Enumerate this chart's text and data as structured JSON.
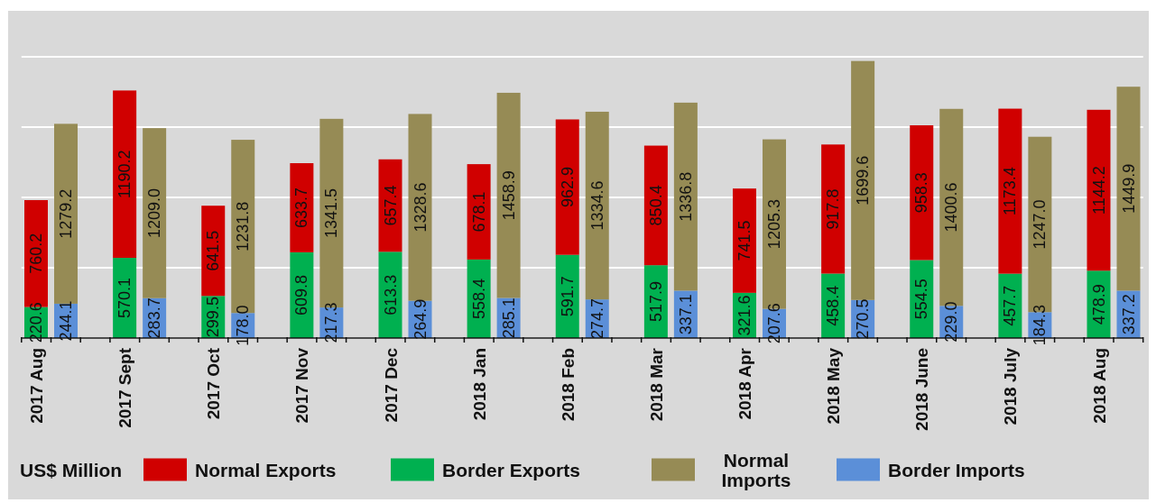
{
  "chart_data": {
    "type": "bar",
    "stacked": true,
    "categories": [
      "2017 Aug",
      null,
      "2017 Sept",
      null,
      "2017 Oct",
      null,
      "2017 Nov",
      null,
      "2017 Dec",
      null,
      "2018 Jan",
      null,
      "2018 Feb",
      null,
      "2018 Mar",
      null,
      "2018 Apr",
      null,
      "2018 May",
      null,
      "2018 June",
      null,
      "2018 July",
      null,
      "2018 Aug",
      null
    ],
    "series": [
      {
        "name": "Border Exports",
        "color": "#00b050",
        "values": [
          220.6,
          null,
          570.1,
          null,
          299.5,
          null,
          609.8,
          null,
          613.3,
          null,
          558.4,
          null,
          591.7,
          null,
          517.9,
          null,
          321.6,
          null,
          458.4,
          null,
          554.5,
          null,
          457.7,
          null,
          478.9,
          null
        ],
        "value_labels": [
          "220.6",
          null,
          "570.1",
          null,
          "299.5",
          null,
          "609.8",
          null,
          "613.3",
          null,
          "558.4",
          null,
          "591.7",
          null,
          "517.9",
          null,
          "321.6",
          null,
          "458.4",
          null,
          "554.5",
          null,
          "457.7",
          null,
          "478.9",
          null
        ]
      },
      {
        "name": "Normal Exports",
        "color": "#d00000",
        "values": [
          760.2,
          null,
          1190.2,
          null,
          641.5,
          null,
          633.7,
          null,
          657.4,
          null,
          678.1,
          null,
          962.9,
          null,
          850.4,
          null,
          741.5,
          null,
          917.8,
          null,
          958.3,
          null,
          1173.4,
          null,
          1144.2,
          null
        ],
        "value_labels": [
          "760.2",
          null,
          "1190.2",
          null,
          "641.5",
          null,
          "633.7",
          null,
          "657.4",
          null,
          "678.1",
          null,
          "962.9",
          null,
          "850.4",
          null,
          "741.5",
          null,
          "917.8",
          null,
          "958.3",
          null,
          "1173.4",
          null,
          "1144.2",
          null
        ]
      },
      {
        "name": "Border Imports",
        "color": "#5b8fd8",
        "values": [
          null,
          244.1,
          null,
          283.7,
          null,
          178.0,
          null,
          217.3,
          null,
          264.9,
          null,
          285.1,
          null,
          274.7,
          null,
          337.1,
          null,
          207.6,
          null,
          270.5,
          null,
          229.0,
          null,
          184.3,
          null,
          337.2
        ],
        "value_labels": [
          null,
          "244.1",
          null,
          "283.7",
          null,
          "178.0",
          null,
          "217.3",
          null,
          "264.9",
          null,
          "285.1",
          null,
          "274.7",
          null,
          "337.1",
          null,
          "207.6",
          null,
          "270.5",
          null,
          "229.0",
          null,
          "184.3",
          null,
          "337.2"
        ]
      },
      {
        "name": "Normal Imports",
        "color": "#968b55",
        "values": [
          null,
          1279.2,
          null,
          1209.0,
          null,
          1231.8,
          null,
          1341.5,
          null,
          1328.6,
          null,
          1458.9,
          null,
          1334.6,
          null,
          1336.8,
          null,
          1205.3,
          null,
          1699.6,
          null,
          1400.6,
          null,
          1247.0,
          null,
          1449.9
        ],
        "value_labels": [
          null,
          "1279.2",
          null,
          "1209.0",
          null,
          "1231.8",
          null,
          "1341.5",
          null,
          "1328.6",
          null,
          "1458.9",
          null,
          "1334.6",
          null,
          "1336.8",
          null,
          "1205.3",
          null,
          "1699.6",
          null,
          "1400.6",
          null,
          "1247.0",
          null,
          "1449.9"
        ]
      }
    ],
    "yticks": [
      0,
      500,
      1000,
      1500,
      2000
    ],
    "tick_labels": "x",
    "grid": "y",
    "legend": "bottom",
    "legend_title": "US$ Million"
  }
}
